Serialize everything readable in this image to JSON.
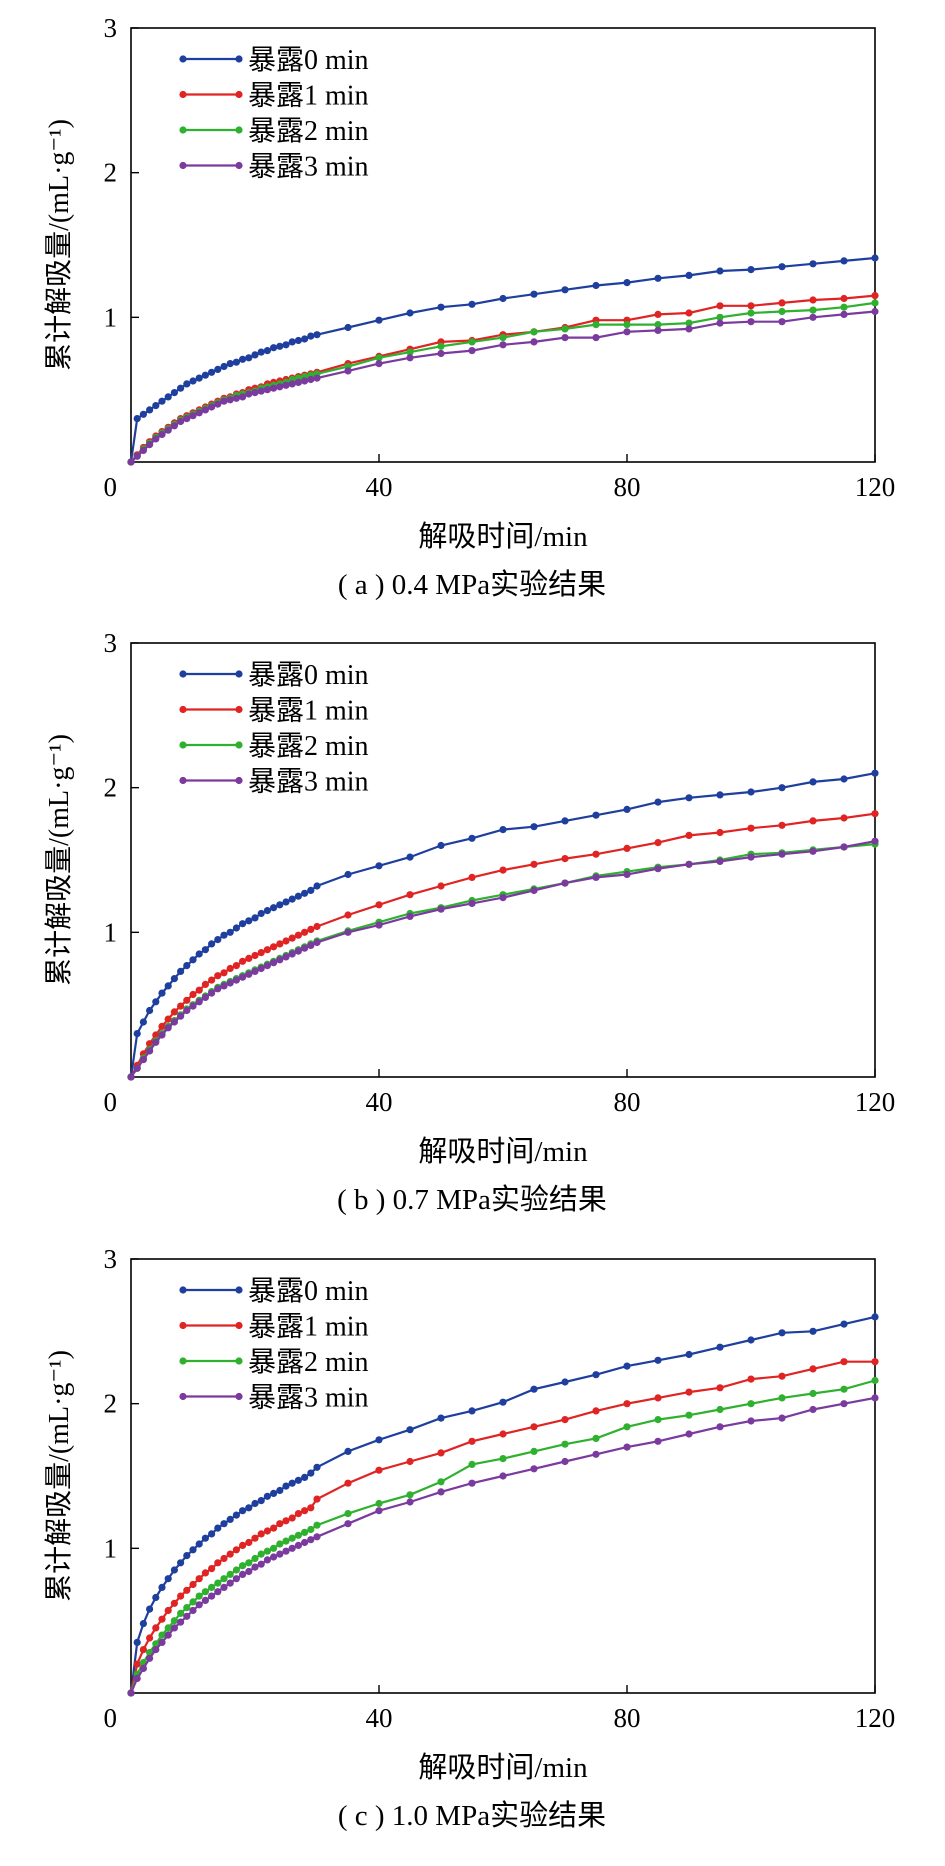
{
  "colors": {
    "series": [
      "#1f3f9e",
      "#e02424",
      "#2fb02f",
      "#7a3a9e"
    ],
    "axis": "#000000",
    "background": "#ffffff"
  },
  "chart_data": [
    {
      "type": "line",
      "caption": "( a ) 0.4 MPa实验结果",
      "xlabel": "解吸时间/min",
      "ylabel": "累计解吸量/(mL·g⁻¹)",
      "xlim": [
        0,
        120
      ],
      "ylim": [
        0,
        3
      ],
      "xticks": [
        40,
        80,
        120
      ],
      "yticks": [
        1,
        2,
        3
      ],
      "legend": "top-left",
      "grid": false,
      "x": [
        0,
        1,
        2,
        3,
        4,
        5,
        6,
        7,
        8,
        9,
        10,
        11,
        12,
        13,
        14,
        15,
        16,
        17,
        18,
        19,
        20,
        21,
        22,
        23,
        24,
        25,
        26,
        27,
        28,
        29,
        30,
        35,
        40,
        45,
        50,
        55,
        60,
        65,
        70,
        75,
        80,
        85,
        90,
        95,
        100,
        105,
        110,
        115,
        120
      ],
      "series": [
        {
          "name": "暴露0 min",
          "values": [
            0,
            0.3,
            0.33,
            0.36,
            0.39,
            0.42,
            0.45,
            0.48,
            0.51,
            0.54,
            0.56,
            0.58,
            0.6,
            0.62,
            0.64,
            0.66,
            0.68,
            0.69,
            0.71,
            0.72,
            0.74,
            0.76,
            0.77,
            0.79,
            0.8,
            0.81,
            0.83,
            0.84,
            0.85,
            0.87,
            0.88,
            0.93,
            0.98,
            1.03,
            1.07,
            1.09,
            1.13,
            1.16,
            1.19,
            1.22,
            1.24,
            1.27,
            1.29,
            1.32,
            1.33,
            1.35,
            1.37,
            1.39,
            1.41
          ]
        },
        {
          "name": "暴露1 min",
          "values": [
            0,
            0.05,
            0.1,
            0.14,
            0.18,
            0.21,
            0.24,
            0.27,
            0.3,
            0.32,
            0.34,
            0.36,
            0.38,
            0.4,
            0.42,
            0.44,
            0.45,
            0.47,
            0.48,
            0.5,
            0.51,
            0.52,
            0.54,
            0.55,
            0.56,
            0.57,
            0.58,
            0.59,
            0.6,
            0.61,
            0.62,
            0.68,
            0.73,
            0.78,
            0.83,
            0.84,
            0.88,
            0.9,
            0.93,
            0.98,
            0.98,
            1.02,
            1.03,
            1.08,
            1.08,
            1.1,
            1.12,
            1.13,
            1.15
          ]
        },
        {
          "name": "暴露2 min",
          "values": [
            0,
            0.04,
            0.09,
            0.13,
            0.17,
            0.2,
            0.23,
            0.26,
            0.29,
            0.31,
            0.33,
            0.35,
            0.37,
            0.39,
            0.41,
            0.43,
            0.44,
            0.46,
            0.47,
            0.48,
            0.49,
            0.51,
            0.52,
            0.53,
            0.54,
            0.55,
            0.57,
            0.58,
            0.59,
            0.6,
            0.61,
            0.66,
            0.72,
            0.76,
            0.8,
            0.83,
            0.86,
            0.9,
            0.92,
            0.95,
            0.95,
            0.95,
            0.96,
            1.0,
            1.03,
            1.04,
            1.05,
            1.07,
            1.1
          ]
        },
        {
          "name": "暴露3 min",
          "values": [
            0,
            0.04,
            0.08,
            0.12,
            0.16,
            0.19,
            0.22,
            0.25,
            0.28,
            0.3,
            0.32,
            0.34,
            0.36,
            0.38,
            0.4,
            0.42,
            0.43,
            0.44,
            0.45,
            0.47,
            0.48,
            0.49,
            0.5,
            0.51,
            0.52,
            0.53,
            0.54,
            0.55,
            0.56,
            0.57,
            0.58,
            0.63,
            0.68,
            0.72,
            0.75,
            0.77,
            0.81,
            0.83,
            0.86,
            0.86,
            0.9,
            0.91,
            0.92,
            0.96,
            0.97,
            0.97,
            1.0,
            1.02,
            1.04
          ]
        }
      ]
    },
    {
      "type": "line",
      "caption": "( b ) 0.7 MPa实验结果",
      "xlabel": "解吸时间/min",
      "ylabel": "累计解吸量/(mL·g⁻¹)",
      "xlim": [
        0,
        120
      ],
      "ylim": [
        0,
        3
      ],
      "xticks": [
        40,
        80,
        120
      ],
      "yticks": [
        1,
        2,
        3
      ],
      "legend": "top-left",
      "grid": false,
      "x": [
        0,
        1,
        2,
        3,
        4,
        5,
        6,
        7,
        8,
        9,
        10,
        11,
        12,
        13,
        14,
        15,
        16,
        17,
        18,
        19,
        20,
        21,
        22,
        23,
        24,
        25,
        26,
        27,
        28,
        29,
        30,
        35,
        40,
        45,
        50,
        55,
        60,
        65,
        70,
        75,
        80,
        85,
        90,
        95,
        100,
        105,
        110,
        115,
        120
      ],
      "series": [
        {
          "name": "暴露0 min",
          "values": [
            0,
            0.3,
            0.38,
            0.46,
            0.52,
            0.58,
            0.63,
            0.68,
            0.73,
            0.77,
            0.81,
            0.85,
            0.88,
            0.92,
            0.95,
            0.98,
            1.0,
            1.03,
            1.06,
            1.08,
            1.1,
            1.13,
            1.15,
            1.17,
            1.19,
            1.21,
            1.23,
            1.25,
            1.27,
            1.29,
            1.32,
            1.4,
            1.46,
            1.52,
            1.6,
            1.65,
            1.71,
            1.73,
            1.77,
            1.81,
            1.85,
            1.9,
            1.93,
            1.95,
            1.97,
            2.0,
            2.04,
            2.06,
            2.1
          ]
        },
        {
          "name": "暴露1 min",
          "values": [
            0,
            0.08,
            0.16,
            0.23,
            0.29,
            0.35,
            0.4,
            0.45,
            0.49,
            0.53,
            0.57,
            0.6,
            0.64,
            0.67,
            0.7,
            0.72,
            0.75,
            0.77,
            0.8,
            0.82,
            0.84,
            0.86,
            0.88,
            0.9,
            0.92,
            0.94,
            0.96,
            0.98,
            1.0,
            1.02,
            1.04,
            1.12,
            1.19,
            1.26,
            1.32,
            1.38,
            1.43,
            1.47,
            1.51,
            1.54,
            1.58,
            1.62,
            1.67,
            1.69,
            1.72,
            1.74,
            1.77,
            1.79,
            1.82
          ]
        },
        {
          "name": "暴露2 min",
          "values": [
            0,
            0.06,
            0.13,
            0.19,
            0.25,
            0.3,
            0.35,
            0.39,
            0.43,
            0.47,
            0.5,
            0.53,
            0.56,
            0.59,
            0.62,
            0.64,
            0.66,
            0.68,
            0.7,
            0.72,
            0.74,
            0.76,
            0.78,
            0.8,
            0.82,
            0.84,
            0.86,
            0.88,
            0.9,
            0.92,
            0.94,
            1.01,
            1.07,
            1.13,
            1.17,
            1.22,
            1.26,
            1.3,
            1.34,
            1.39,
            1.42,
            1.45,
            1.47,
            1.5,
            1.54,
            1.55,
            1.57,
            1.59,
            1.61
          ]
        },
        {
          "name": "暴露3 min",
          "values": [
            0,
            0.06,
            0.12,
            0.18,
            0.24,
            0.29,
            0.34,
            0.38,
            0.42,
            0.46,
            0.49,
            0.52,
            0.55,
            0.58,
            0.61,
            0.63,
            0.65,
            0.67,
            0.69,
            0.71,
            0.73,
            0.75,
            0.77,
            0.79,
            0.81,
            0.83,
            0.85,
            0.87,
            0.89,
            0.91,
            0.93,
            1.0,
            1.05,
            1.11,
            1.16,
            1.2,
            1.24,
            1.29,
            1.34,
            1.38,
            1.4,
            1.44,
            1.47,
            1.49,
            1.52,
            1.54,
            1.56,
            1.59,
            1.63
          ]
        }
      ]
    },
    {
      "type": "line",
      "caption": "( c ) 1.0 MPa实验结果",
      "xlabel": "解吸时间/min",
      "ylabel": "累计解吸量/(mL·g⁻¹)",
      "xlim": [
        0,
        120
      ],
      "ylim": [
        0,
        3
      ],
      "xticks": [
        40,
        80,
        120
      ],
      "yticks": [
        1,
        2,
        3
      ],
      "legend": "top-left",
      "grid": false,
      "x": [
        0,
        1,
        2,
        3,
        4,
        5,
        6,
        7,
        8,
        9,
        10,
        11,
        12,
        13,
        14,
        15,
        16,
        17,
        18,
        19,
        20,
        21,
        22,
        23,
        24,
        25,
        26,
        27,
        28,
        29,
        30,
        35,
        40,
        45,
        50,
        55,
        60,
        65,
        70,
        75,
        80,
        85,
        90,
        95,
        100,
        105,
        110,
        115,
        120
      ],
      "series": [
        {
          "name": "暴露0 min",
          "values": [
            0,
            0.35,
            0.48,
            0.58,
            0.66,
            0.73,
            0.79,
            0.85,
            0.9,
            0.95,
            0.99,
            1.03,
            1.07,
            1.1,
            1.14,
            1.17,
            1.2,
            1.23,
            1.26,
            1.28,
            1.31,
            1.33,
            1.36,
            1.38,
            1.4,
            1.43,
            1.45,
            1.47,
            1.49,
            1.52,
            1.56,
            1.67,
            1.75,
            1.82,
            1.9,
            1.95,
            2.01,
            2.1,
            2.15,
            2.2,
            2.26,
            2.3,
            2.34,
            2.39,
            2.44,
            2.49,
            2.5,
            2.55,
            2.6
          ]
        },
        {
          "name": "暴露1 min",
          "values": [
            0,
            0.2,
            0.3,
            0.38,
            0.45,
            0.51,
            0.57,
            0.62,
            0.67,
            0.71,
            0.75,
            0.79,
            0.83,
            0.86,
            0.9,
            0.93,
            0.96,
            0.99,
            1.02,
            1.04,
            1.07,
            1.1,
            1.12,
            1.14,
            1.17,
            1.19,
            1.21,
            1.24,
            1.26,
            1.28,
            1.34,
            1.45,
            1.54,
            1.6,
            1.66,
            1.74,
            1.79,
            1.84,
            1.89,
            1.95,
            2.0,
            2.04,
            2.08,
            2.11,
            2.17,
            2.19,
            2.24,
            2.29,
            2.29
          ]
        },
        {
          "name": "暴露2 min",
          "values": [
            0,
            0.13,
            0.21,
            0.28,
            0.34,
            0.4,
            0.45,
            0.5,
            0.55,
            0.59,
            0.63,
            0.67,
            0.7,
            0.73,
            0.76,
            0.79,
            0.82,
            0.85,
            0.88,
            0.9,
            0.93,
            0.96,
            0.98,
            1.0,
            1.03,
            1.05,
            1.07,
            1.09,
            1.11,
            1.13,
            1.16,
            1.24,
            1.31,
            1.37,
            1.46,
            1.58,
            1.62,
            1.67,
            1.72,
            1.76,
            1.84,
            1.89,
            1.92,
            1.96,
            2.0,
            2.04,
            2.07,
            2.1,
            2.16
          ]
        },
        {
          "name": "暴露3 min",
          "values": [
            0,
            0.1,
            0.17,
            0.24,
            0.3,
            0.35,
            0.4,
            0.45,
            0.49,
            0.53,
            0.57,
            0.61,
            0.64,
            0.67,
            0.7,
            0.73,
            0.76,
            0.79,
            0.82,
            0.84,
            0.87,
            0.89,
            0.92,
            0.94,
            0.96,
            0.98,
            1.0,
            1.02,
            1.04,
            1.06,
            1.08,
            1.17,
            1.26,
            1.32,
            1.39,
            1.45,
            1.5,
            1.55,
            1.6,
            1.65,
            1.7,
            1.74,
            1.79,
            1.84,
            1.88,
            1.9,
            1.96,
            2.0,
            2.04
          ]
        }
      ]
    }
  ]
}
